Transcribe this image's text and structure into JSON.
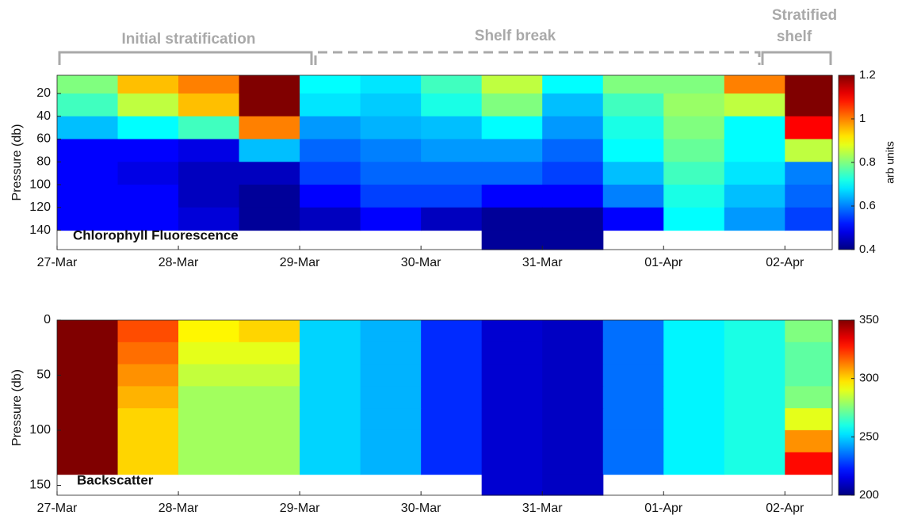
{
  "chart_data": [
    {
      "type": "heatmap",
      "label": "Chlorophyll Fluorescence",
      "ylabel": "Pressure (db)",
      "colorbar_label": "arb units",
      "colormap": "jet",
      "annotations": [
        {
          "text": [
            "Initial stratification"
          ],
          "style": "solid"
        },
        {
          "text": [
            "Shelf break"
          ],
          "style": "dashed"
        },
        {
          "text": [
            "Stratified",
            "shelf"
          ],
          "style": "solid"
        }
      ],
      "xlim": [
        0,
        6.39
      ],
      "xticks": [
        {
          "value": 0,
          "label": "27-Mar"
        },
        {
          "value": 1,
          "label": "28-Mar"
        },
        {
          "value": 2,
          "label": "29-Mar"
        },
        {
          "value": 3,
          "label": "30-Mar"
        },
        {
          "value": 4,
          "label": "31-Mar"
        },
        {
          "value": 5,
          "label": "01-Apr"
        },
        {
          "value": 6,
          "label": "02-Apr"
        }
      ],
      "ylim": [
        4,
        157
      ],
      "yticks": [
        20,
        40,
        60,
        80,
        100,
        120,
        140
      ],
      "clim": [
        0.4,
        1.2
      ],
      "cticks": [
        0.4,
        0.6,
        0.8,
        1,
        1.2
      ],
      "x": [
        0,
        0.5,
        1,
        1.5,
        2,
        2.5,
        3,
        3.5,
        4,
        4.5,
        5,
        5.5,
        6,
        6.39
      ],
      "y": [
        4,
        20,
        40,
        60,
        80,
        100,
        120,
        140,
        157
      ],
      "z": [
        [
          0.8,
          0.95,
          1.0,
          1.2,
          0.7,
          0.68,
          0.75,
          0.85,
          0.7,
          0.8,
          0.8,
          1.0,
          1.2
        ],
        [
          0.75,
          0.85,
          0.95,
          1.2,
          0.68,
          0.66,
          0.72,
          0.8,
          0.65,
          0.75,
          0.82,
          0.85,
          1.2
        ],
        [
          0.65,
          0.7,
          0.75,
          1.0,
          0.62,
          0.64,
          0.65,
          0.7,
          0.62,
          0.72,
          0.8,
          0.7,
          1.1
        ],
        [
          0.5,
          0.5,
          0.48,
          0.65,
          0.58,
          0.6,
          0.62,
          0.62,
          0.58,
          0.7,
          0.78,
          0.7,
          0.85
        ],
        [
          0.5,
          0.48,
          0.45,
          0.45,
          0.55,
          0.58,
          0.58,
          0.58,
          0.55,
          0.65,
          0.75,
          0.68,
          0.6
        ],
        [
          0.5,
          0.5,
          0.45,
          0.42,
          0.5,
          0.55,
          0.55,
          0.5,
          0.5,
          0.6,
          0.72,
          0.65,
          0.58
        ],
        [
          0.5,
          0.5,
          0.47,
          0.42,
          0.45,
          0.5,
          0.45,
          0.42,
          0.42,
          0.5,
          0.7,
          0.62,
          0.55
        ],
        [
          null,
          null,
          null,
          null,
          null,
          null,
          null,
          0.42,
          0.42,
          null,
          null,
          null,
          null
        ]
      ]
    },
    {
      "type": "heatmap",
      "label": "Backscatter",
      "ylabel": "Pressure (db)",
      "colormap": "jet",
      "xlim": [
        0,
        6.39
      ],
      "xticks": [
        {
          "value": 0,
          "label": "27-Mar"
        },
        {
          "value": 1,
          "label": "28-Mar"
        },
        {
          "value": 2,
          "label": "29-Mar"
        },
        {
          "value": 3,
          "label": "30-Mar"
        },
        {
          "value": 4,
          "label": "31-Mar"
        },
        {
          "value": 5,
          "label": "01-Apr"
        },
        {
          "value": 6,
          "label": "02-Apr"
        }
      ],
      "ylim": [
        0,
        159
      ],
      "yticks": [
        0,
        50,
        100,
        150
      ],
      "clim": [
        200,
        350
      ],
      "cticks": [
        200,
        250,
        300,
        350
      ],
      "x": [
        0,
        0.5,
        1,
        1.5,
        2,
        2.5,
        3,
        3.5,
        4,
        4.5,
        5,
        5.5,
        6,
        6.39
      ],
      "y": [
        0,
        20,
        40,
        60,
        80,
        100,
        120,
        140,
        159
      ],
      "z": [
        [
          350,
          320,
          295,
          300,
          250,
          245,
          225,
          212,
          210,
          235,
          255,
          260,
          275
        ],
        [
          350,
          315,
          290,
          290,
          250,
          245,
          225,
          212,
          210,
          235,
          255,
          260,
          270
        ],
        [
          350,
          310,
          285,
          285,
          250,
          245,
          225,
          212,
          210,
          235,
          255,
          260,
          270
        ],
        [
          350,
          305,
          280,
          280,
          250,
          245,
          225,
          212,
          210,
          235,
          255,
          260,
          275
        ],
        [
          350,
          300,
          280,
          280,
          250,
          245,
          225,
          212,
          210,
          235,
          255,
          260,
          290
        ],
        [
          350,
          300,
          280,
          280,
          250,
          245,
          225,
          212,
          210,
          235,
          255,
          260,
          310
        ],
        [
          350,
          300,
          280,
          280,
          250,
          245,
          225,
          212,
          210,
          235,
          255,
          260,
          330
        ],
        [
          null,
          null,
          null,
          null,
          null,
          null,
          null,
          212,
          210,
          null,
          null,
          null,
          null
        ]
      ]
    }
  ]
}
